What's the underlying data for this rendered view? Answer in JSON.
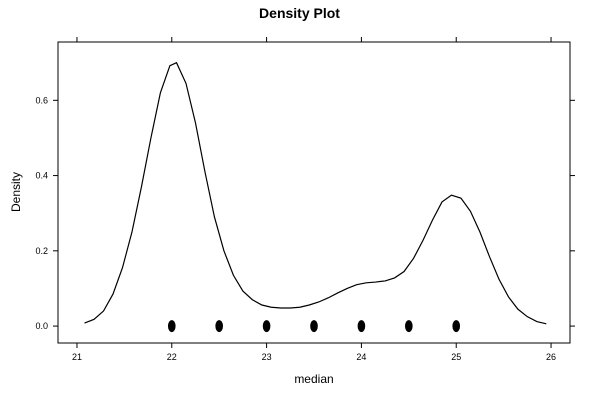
{
  "chart_data": {
    "type": "line",
    "title": "Density Plot",
    "xlabel": "median",
    "ylabel": "Density",
    "xlim": [
      20.8,
      26.2
    ],
    "ylim": [
      -0.045,
      0.755
    ],
    "x_ticks": [
      21,
      22,
      23,
      24,
      25,
      26
    ],
    "x_tick_labels": [
      "21",
      "22",
      "23",
      "24",
      "25",
      "26"
    ],
    "y_ticks": [
      0.0,
      0.2,
      0.4,
      0.6
    ],
    "y_tick_labels": [
      "0.0",
      "0.2",
      "0.4",
      "0.6"
    ],
    "grid": false,
    "series": [
      {
        "kind": "density-line",
        "x": [
          21.08,
          21.18,
          21.28,
          21.38,
          21.48,
          21.58,
          21.68,
          21.78,
          21.88,
          21.98,
          22.05,
          22.15,
          22.25,
          22.35,
          22.45,
          22.55,
          22.65,
          22.75,
          22.85,
          22.95,
          23.05,
          23.15,
          23.25,
          23.35,
          23.45,
          23.55,
          23.65,
          23.75,
          23.85,
          23.95,
          24.05,
          24.15,
          24.25,
          24.35,
          24.45,
          24.55,
          24.65,
          24.75,
          24.85,
          24.95,
          25.05,
          25.15,
          25.25,
          25.35,
          25.45,
          25.55,
          25.65,
          25.75,
          25.85,
          25.95
        ],
        "y": [
          0.008,
          0.018,
          0.04,
          0.085,
          0.155,
          0.25,
          0.37,
          0.5,
          0.62,
          0.692,
          0.7,
          0.645,
          0.54,
          0.41,
          0.29,
          0.2,
          0.135,
          0.093,
          0.07,
          0.056,
          0.05,
          0.048,
          0.048,
          0.05,
          0.056,
          0.064,
          0.075,
          0.088,
          0.1,
          0.11,
          0.115,
          0.117,
          0.12,
          0.128,
          0.145,
          0.18,
          0.228,
          0.282,
          0.33,
          0.348,
          0.34,
          0.305,
          0.25,
          0.185,
          0.125,
          0.078,
          0.045,
          0.025,
          0.012,
          0.006
        ]
      },
      {
        "kind": "rug-points",
        "x": [
          22.0,
          22.5,
          23.0,
          23.5,
          24.0,
          24.5,
          25.0
        ],
        "y": [
          0,
          0,
          0,
          0,
          0,
          0,
          0
        ]
      }
    ]
  }
}
